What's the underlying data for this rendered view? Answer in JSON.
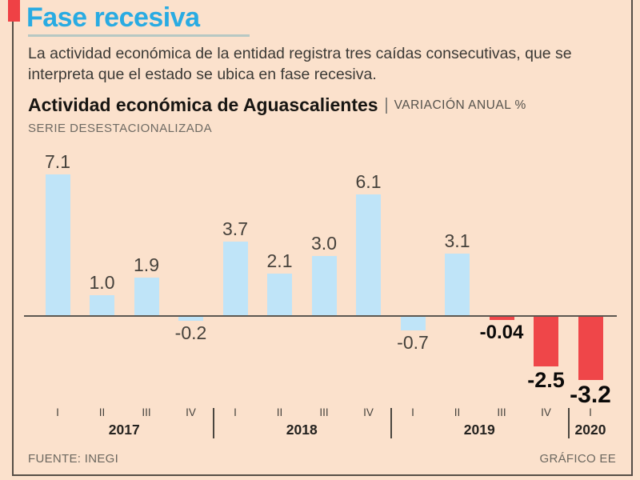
{
  "header": {
    "title": "Fase recesiva",
    "intro": "La actividad económica de la entidad registra tres caídas consecutivas, que se\ninterpreta que el estado se ubica en fase recesiva."
  },
  "chart_header": {
    "title": "Actividad económica de Aguascalientes",
    "units": "VARIACIÓN ANUAL %",
    "subtitle": "SERIE DESESTACIONALIZADA"
  },
  "chart_data": {
    "type": "bar",
    "title": "Actividad económica de Aguascalientes",
    "subtitle": "SERIE DESESTACIONALIZADA",
    "ylabel": "VARIACIÓN ANUAL %",
    "categories": [
      "I",
      "II",
      "III",
      "IV",
      "I",
      "II",
      "III",
      "IV",
      "I",
      "II",
      "III",
      "IV",
      "I"
    ],
    "year_groups": [
      {
        "label": "2017",
        "count": 4
      },
      {
        "label": "2018",
        "count": 4
      },
      {
        "label": "2019",
        "count": 4
      },
      {
        "label": "2020",
        "count": 1
      }
    ],
    "values": [
      7.1,
      1.0,
      1.9,
      -0.2,
      3.7,
      2.1,
      3.0,
      6.1,
      -0.7,
      3.1,
      -0.04,
      -2.5,
      -3.2
    ],
    "labels": [
      "7.1",
      "1.0",
      "1.9",
      "-0.2",
      "3.7",
      "2.1",
      "3.0",
      "6.1",
      "-0.7",
      "3.1",
      "-0.04",
      "-2.5",
      "-3.2"
    ],
    "highlight_indices": [
      10,
      11,
      12
    ],
    "ylim": [
      -3.5,
      7.5
    ],
    "grid": false,
    "legend": null,
    "colors": {
      "bar_default": "#bfe4f8",
      "bar_highlight": "#ef4649",
      "accent_title": "#29abe2",
      "accent_marker": "#ef4145",
      "background": "#fbe1cc"
    }
  },
  "footer": {
    "source": "FUENTE: INEGI",
    "credit": "GRÁFICO EE"
  }
}
